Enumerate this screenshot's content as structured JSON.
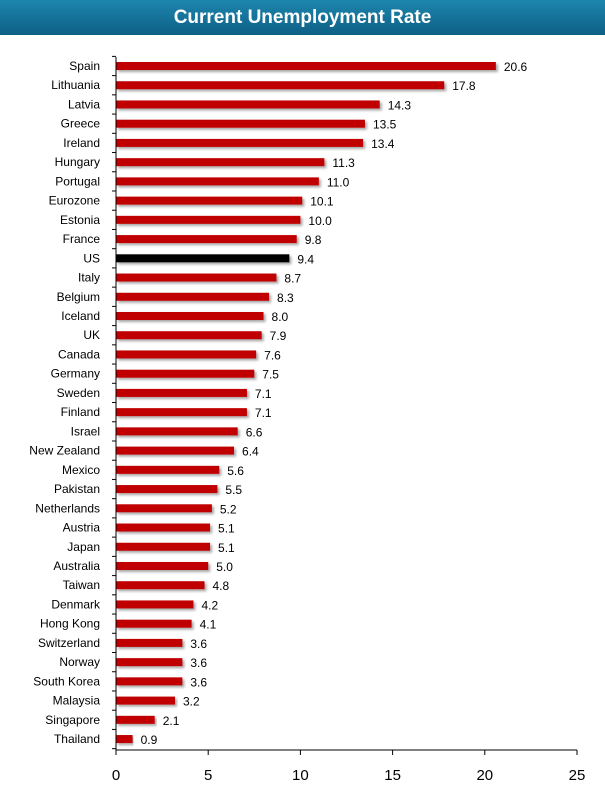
{
  "chart_data": {
    "type": "bar",
    "orientation": "horizontal",
    "title": "Current Unemployment Rate",
    "categories": [
      "Spain",
      "Lithuania",
      "Latvia",
      "Greece",
      "Ireland",
      "Hungary",
      "Portugal",
      "Eurozone",
      "Estonia",
      "France",
      "US",
      "Italy",
      "Belgium",
      "Iceland",
      "UK",
      "Canada",
      "Germany",
      "Sweden",
      "Finland",
      "Israel",
      "New Zealand",
      "Mexico",
      "Pakistan",
      "Netherlands",
      "Austria",
      "Japan",
      "Australia",
      "Taiwan",
      "Denmark",
      "Hong Kong",
      "Switzerland",
      "Norway",
      "South Korea",
      "Malaysia",
      "Singapore",
      "Thailand"
    ],
    "values": [
      20.6,
      17.8,
      14.3,
      13.5,
      13.4,
      11.3,
      11.0,
      10.1,
      10.0,
      9.8,
      9.4,
      8.7,
      8.3,
      8.0,
      7.9,
      7.6,
      7.5,
      7.1,
      7.1,
      6.6,
      6.4,
      5.6,
      5.5,
      5.2,
      5.1,
      5.1,
      5.0,
      4.8,
      4.2,
      4.1,
      3.6,
      3.6,
      3.6,
      3.2,
      2.1,
      0.9
    ],
    "value_labels": [
      "20.6",
      "17.8",
      "14.3",
      "13.5",
      "13.4",
      "11.3",
      "11.0",
      "10.1",
      "10.0",
      "9.8",
      "9.4",
      "8.7",
      "8.3",
      "8.0",
      "7.9",
      "7.6",
      "7.5",
      "7.1",
      "7.1",
      "6.6",
      "6.4",
      "5.6",
      "5.5",
      "5.2",
      "5.1",
      "5.1",
      "5.0",
      "4.8",
      "4.2",
      "4.1",
      "3.6",
      "3.6",
      "3.6",
      "3.2",
      "2.1",
      "0.9"
    ],
    "highlight_category": "US",
    "xlim": [
      0,
      25
    ],
    "xticks": [
      "0",
      "5",
      "10",
      "15",
      "20",
      "25"
    ],
    "colors": {
      "bar": "#c00000",
      "highlight": "#000000",
      "title_bg": "#156f99",
      "axis": "#000000"
    },
    "grid": false,
    "legend": "none"
  }
}
